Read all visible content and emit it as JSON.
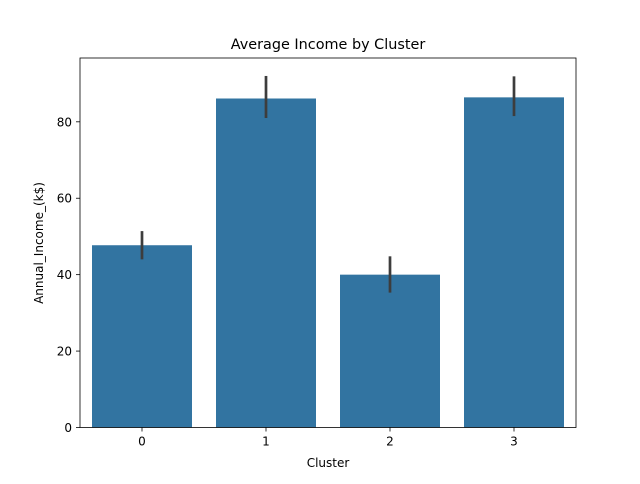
{
  "chart_data": {
    "type": "bar",
    "title": "Average Income by Cluster",
    "xlabel": "Cluster",
    "ylabel": "Annual_Income_(k$)",
    "categories": [
      "0",
      "1",
      "2",
      "3"
    ],
    "values": [
      47.7,
      86.1,
      40.0,
      86.4
    ],
    "error_low": [
      44.0,
      81.0,
      35.3,
      81.5
    ],
    "error_high": [
      51.4,
      92.0,
      44.8,
      91.9
    ],
    "ylim": [
      0,
      96.7
    ],
    "yticks": [
      0,
      20,
      40,
      60,
      80
    ],
    "grid": false,
    "bar_color": "#3274a1",
    "error_color": "#3d3d3d"
  }
}
